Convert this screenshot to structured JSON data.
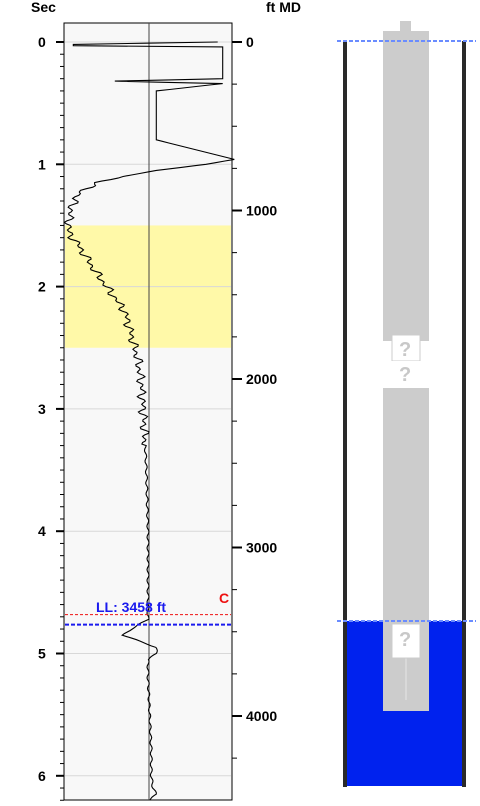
{
  "chart_data": {
    "type": "line",
    "left_axis": {
      "title": "Sec",
      "ticks": [
        "0",
        "1",
        "2",
        "3",
        "4",
        "5",
        "6"
      ],
      "range": [
        0,
        6.2
      ]
    },
    "right_axis": {
      "title": "ft MD",
      "ticks": [
        "0",
        "1000",
        "2000",
        "3000",
        "4000"
      ],
      "range": [
        0,
        4450
      ]
    },
    "highlight_band_sec": [
      1.5,
      2.5
    ],
    "highlight_color": "#fff9a8",
    "liquid_level": {
      "label": "LL: 3458 ft",
      "depth_ft": 3458,
      "marker": "C",
      "marker_color": "#ee1111",
      "label_color": "#1a1aee"
    },
    "center_reference_sec": 0,
    "curve_color": "#000000",
    "signal": [
      [
        0.0,
        0.92
      ],
      [
        0.02,
        0.05
      ],
      [
        0.03,
        0.05
      ],
      [
        0.04,
        0.95
      ],
      [
        0.05,
        0.95
      ],
      [
        0.3,
        0.95
      ],
      [
        0.32,
        0.3
      ],
      [
        0.34,
        0.95
      ],
      [
        0.4,
        0.55
      ],
      [
        0.8,
        0.55
      ],
      [
        0.96,
        1.02
      ],
      [
        1.0,
        0.85
      ],
      [
        1.05,
        0.55
      ],
      [
        1.1,
        0.35
      ],
      [
        1.15,
        0.2
      ],
      [
        1.2,
        0.12
      ],
      [
        1.28,
        0.06
      ],
      [
        1.4,
        0.03
      ],
      [
        1.55,
        0.02
      ],
      [
        1.7,
        0.1
      ],
      [
        1.85,
        0.17
      ],
      [
        2.0,
        0.25
      ],
      [
        2.2,
        0.36
      ],
      [
        2.4,
        0.4
      ],
      [
        2.6,
        0.44
      ],
      [
        2.8,
        0.46
      ],
      [
        3.0,
        0.47
      ],
      [
        3.2,
        0.48
      ],
      [
        3.5,
        0.49
      ],
      [
        4.0,
        0.5
      ],
      [
        4.5,
        0.5
      ],
      [
        4.72,
        0.5
      ],
      [
        4.8,
        0.4
      ],
      [
        4.85,
        0.35
      ],
      [
        4.9,
        0.45
      ],
      [
        4.95,
        0.55
      ],
      [
        5.0,
        0.55
      ],
      [
        5.05,
        0.5
      ],
      [
        5.2,
        0.5
      ],
      [
        5.5,
        0.51
      ],
      [
        5.8,
        0.52
      ],
      [
        6.0,
        0.52
      ],
      [
        6.1,
        0.53
      ],
      [
        6.15,
        0.55
      ],
      [
        6.2,
        0.51
      ]
    ]
  },
  "wellbore": {
    "casing_color": "#2a2a2a",
    "tubing_color": "#cccccc",
    "fluid_color": "#0022ee",
    "surface_line_color": "#6a8cff",
    "unknown_glyph": "?",
    "unknown_markers": 3
  }
}
